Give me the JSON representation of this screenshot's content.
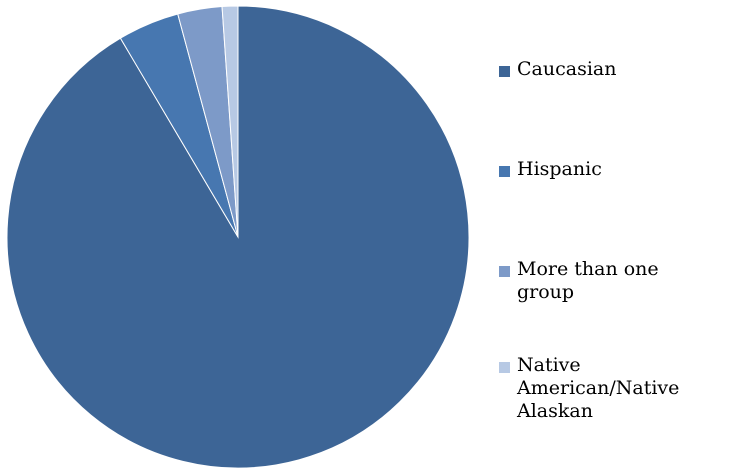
{
  "chart_data": {
    "type": "pie",
    "series": [
      {
        "categories": [
          "Caucasian",
          "Hispanic",
          "More than one group",
          "Native American/Native Alaskan"
        ],
        "values": [
          91.5,
          4.3,
          3.1,
          1.1
        ],
        "colors": [
          "#3D6596",
          "#4777B0",
          "#7D9AC8",
          "#B7C9E4"
        ]
      }
    ],
    "legend_position": "right"
  },
  "legend": {
    "items": [
      {
        "label": "Caucasian",
        "color": "#3D6596"
      },
      {
        "label": "Hispanic",
        "color": "#4777B0"
      },
      {
        "label": "More than one group",
        "color": "#7D9AC8"
      },
      {
        "label": "Native American/Native Alaskan",
        "color": "#B7C9E4"
      }
    ]
  }
}
